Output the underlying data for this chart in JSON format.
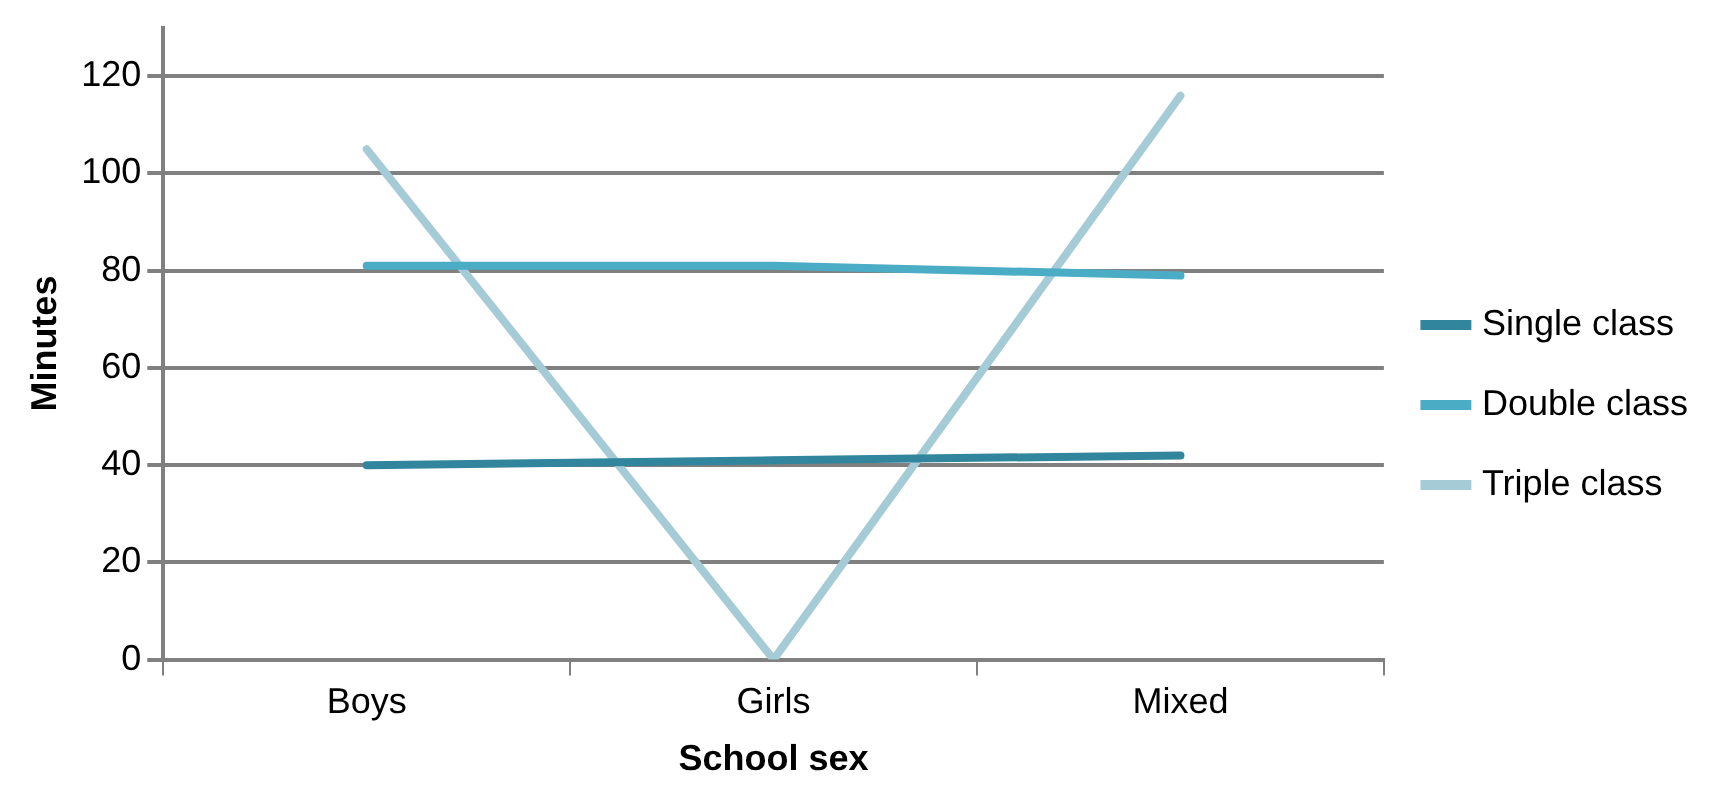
{
  "chart_data": {
    "type": "line",
    "xlabel": "School sex",
    "ylabel": "Minutes",
    "categories": [
      "Boys",
      "Girls",
      "Mixed"
    ],
    "series": [
      {
        "name": "Single class",
        "color": "#31859c",
        "values": [
          40,
          41,
          42
        ]
      },
      {
        "name": "Double class",
        "color": "#4bacc6",
        "values": [
          81,
          81,
          79
        ]
      },
      {
        "name": "Triple class",
        "color": "#a5cbd7",
        "values": [
          105,
          0,
          116
        ]
      }
    ],
    "ylim": [
      0,
      130
    ],
    "yticks": [
      0,
      20,
      40,
      60,
      80,
      100,
      120
    ],
    "grid": "y",
    "legend": "right",
    "marker": "none",
    "line_style": "solid"
  }
}
